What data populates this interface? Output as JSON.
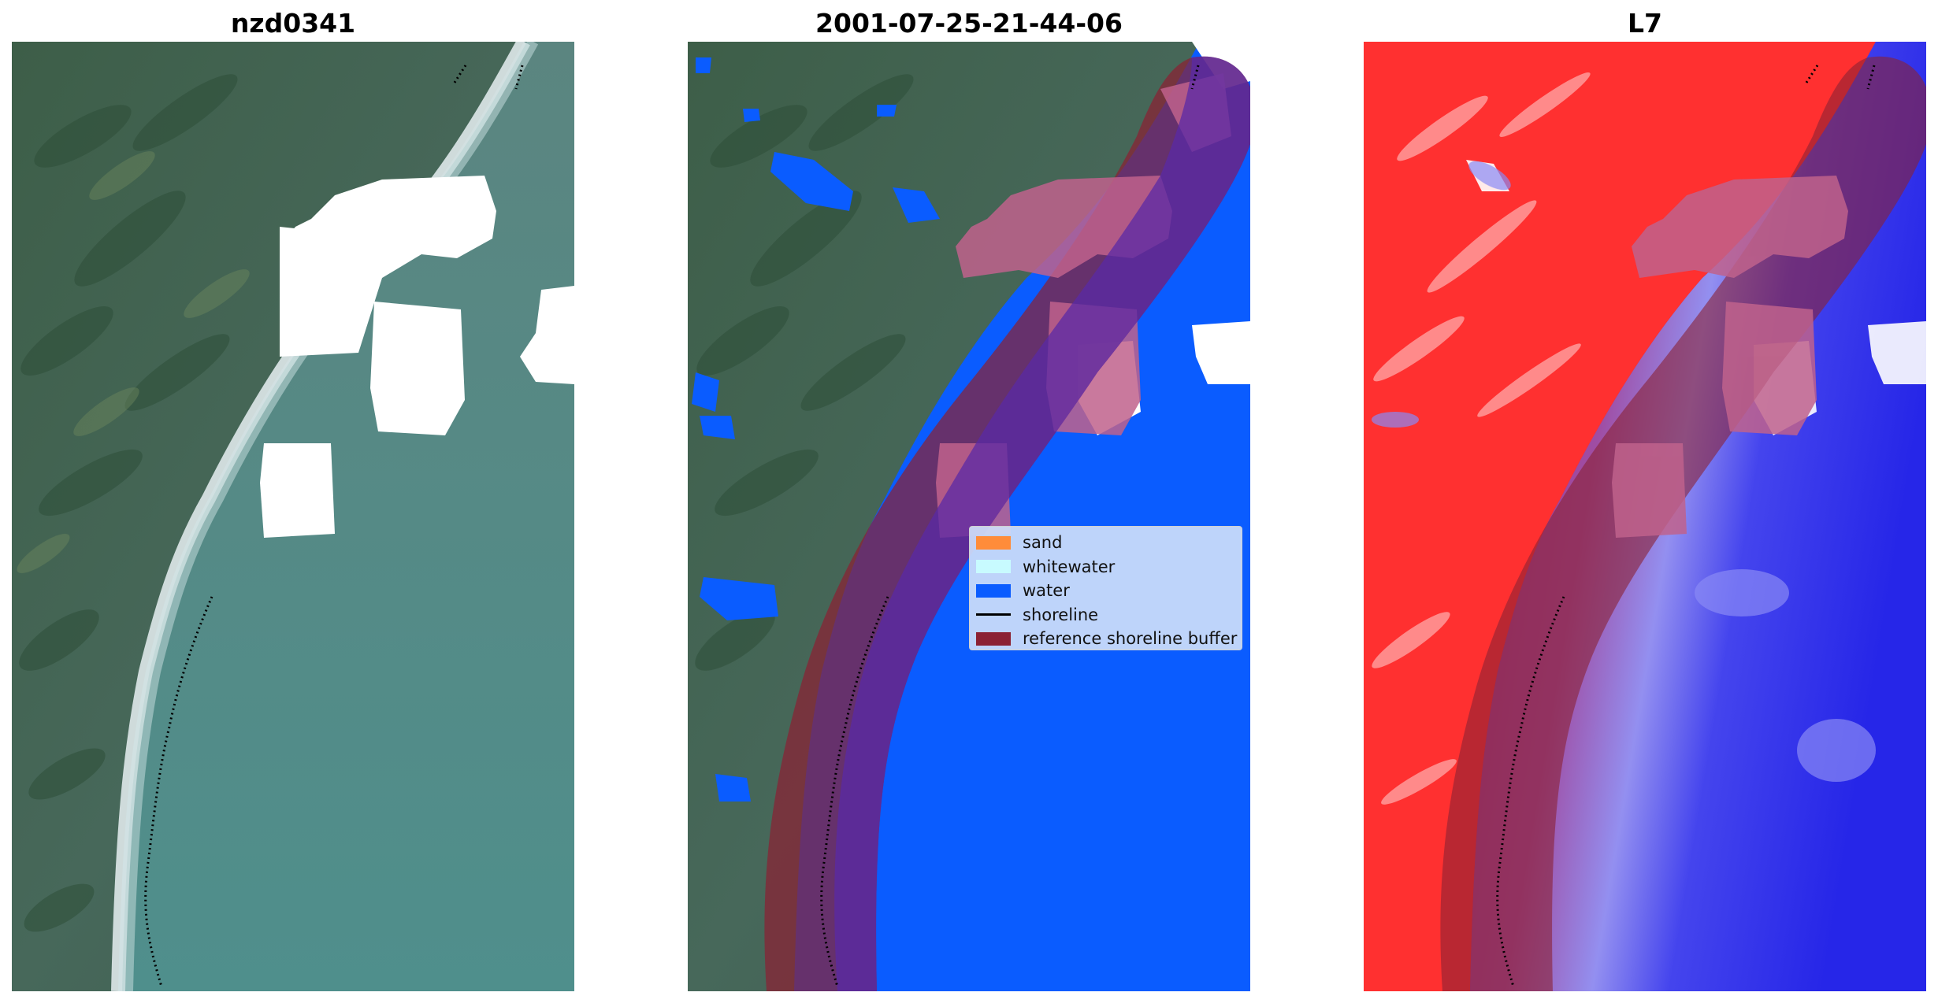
{
  "panels": [
    {
      "title": "nzd0341"
    },
    {
      "title": "2001-07-25-21-44-06"
    },
    {
      "title": "L7"
    }
  ],
  "legend": {
    "items": [
      {
        "label": "sand",
        "color": "#ff8c3a"
      },
      {
        "label": "whitewater",
        "color": "#c8fbff"
      },
      {
        "label": "water",
        "color": "#0a5cff"
      },
      {
        "label": "shoreline",
        "color": "#000000"
      },
      {
        "label": "reference shoreline buffer",
        "color": "#8b2133"
      }
    ]
  },
  "colors": {
    "land": "#3e6450",
    "sea": "#4c8c8c",
    "surf": "#e8f0f2",
    "cloud_mask": "#ffffff",
    "index_positive": "#ff2020",
    "index_negative": "#2020ee",
    "buffer": "#8b2133"
  }
}
